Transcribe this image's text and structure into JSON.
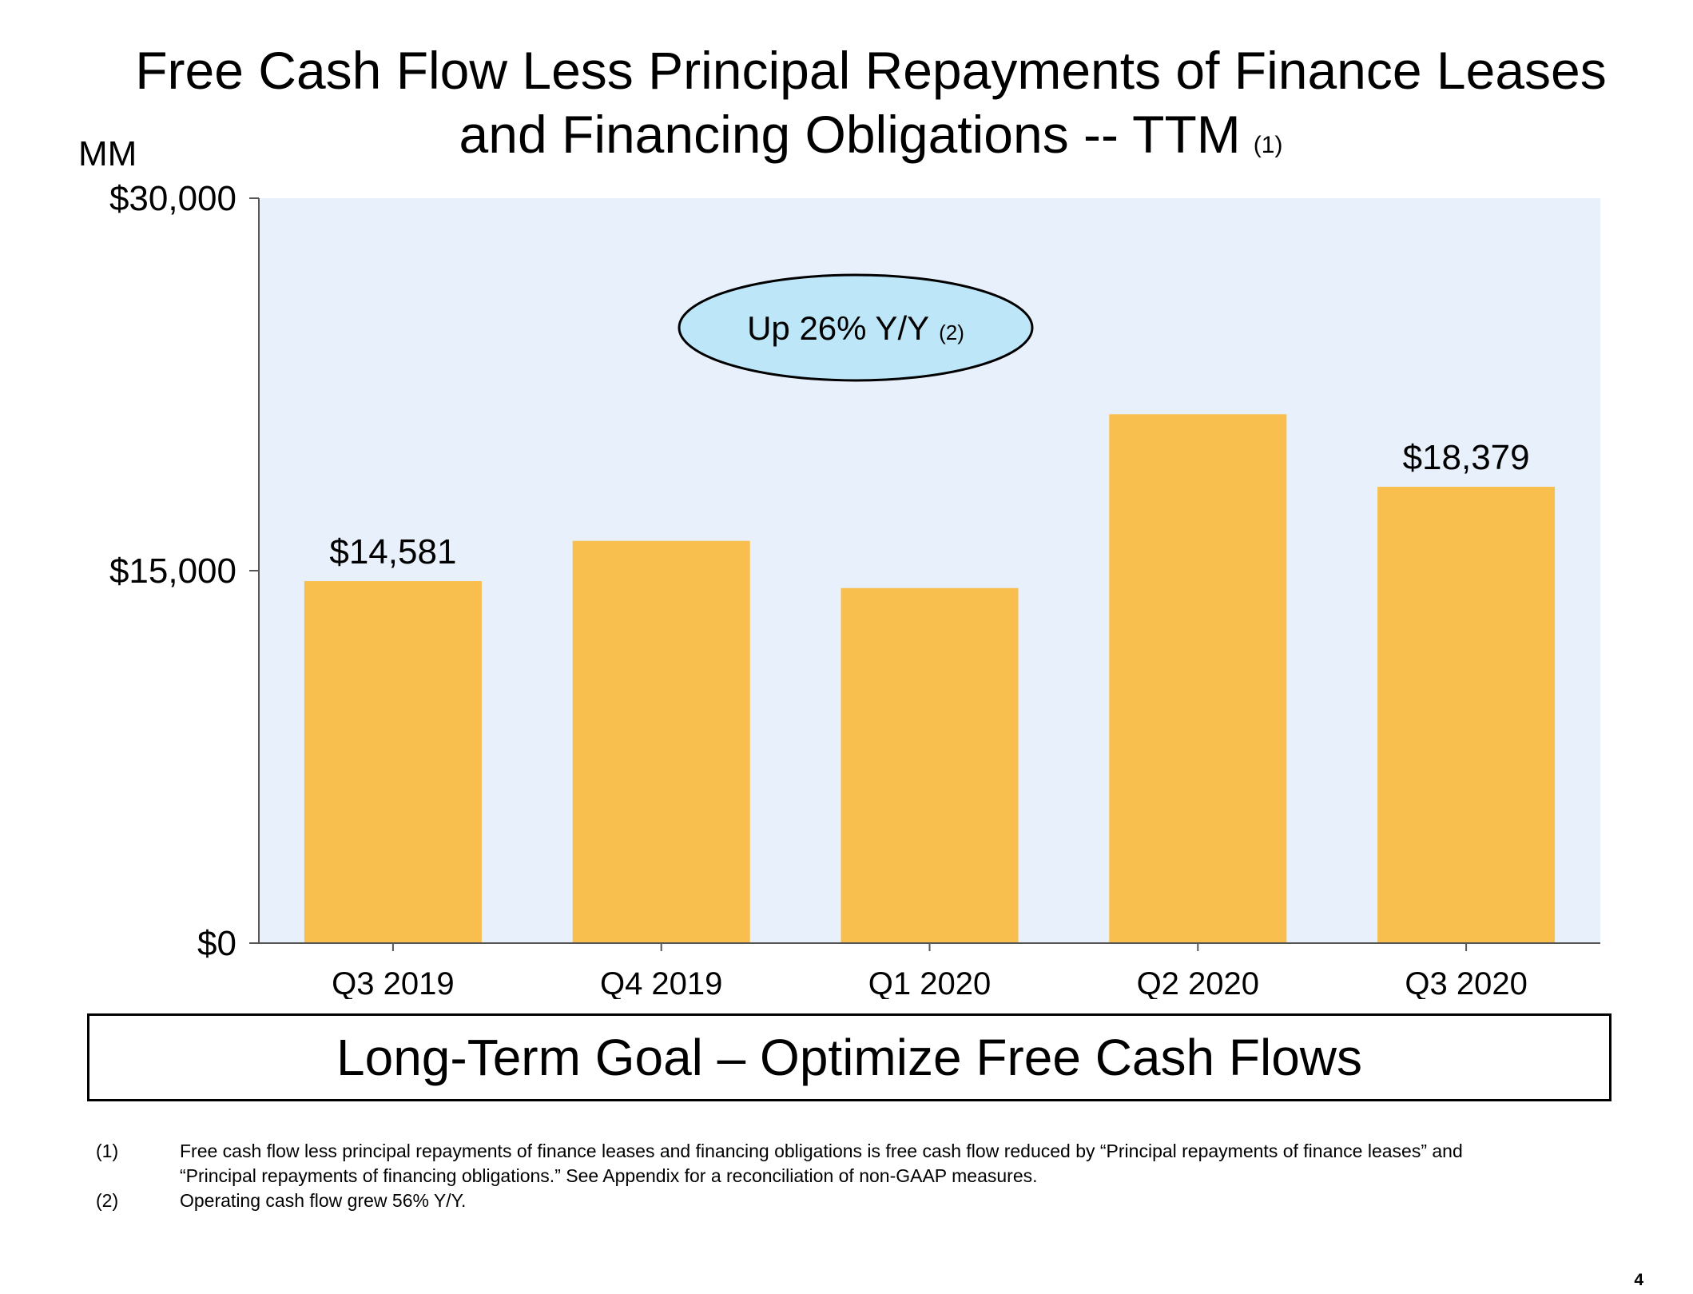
{
  "title": {
    "line1": "Free Cash Flow Less Principal Repayments of Finance Leases",
    "line2": "and Financing Obligations -- TTM",
    "footnote_ref": "(1)"
  },
  "unit_label": "MM",
  "callout": {
    "text": "Up 26% Y/Y",
    "footnote_ref": "(2)",
    "fill": "#bde6f8"
  },
  "goal_text": "Long-Term Goal – Optimize Free Cash Flows",
  "footnotes": [
    {
      "num": "(1)",
      "text": "Free cash flow less principal repayments of finance leases and financing obligations is free cash flow reduced by “Principal repayments of finance leases” and “Principal repayments of financing obligations.” See Appendix for a reconciliation of non-GAAP measures."
    },
    {
      "num": "(2)",
      "text": "Operating cash flow grew 56% Y/Y."
    }
  ],
  "page_number": "4",
  "colors": {
    "bar": "#f8bf4f",
    "plot_background": "#e8f0fc",
    "axis": "#555555"
  },
  "chart_data": {
    "type": "bar",
    "categories": [
      "Q3 2019",
      "Q4 2019",
      "Q1 2020",
      "Q2 2020",
      "Q3 2020"
    ],
    "values": [
      14581,
      16200,
      14300,
      21300,
      18379
    ],
    "data_labels": [
      "$14,581",
      "",
      "",
      "",
      "$18,379"
    ],
    "ylim": [
      0,
      30000
    ],
    "yticks": [
      0,
      15000,
      30000
    ],
    "ytick_labels": [
      "$0",
      "$15,000",
      "$30,000"
    ],
    "ylabel": "MM",
    "grid": false,
    "legend": "none"
  }
}
